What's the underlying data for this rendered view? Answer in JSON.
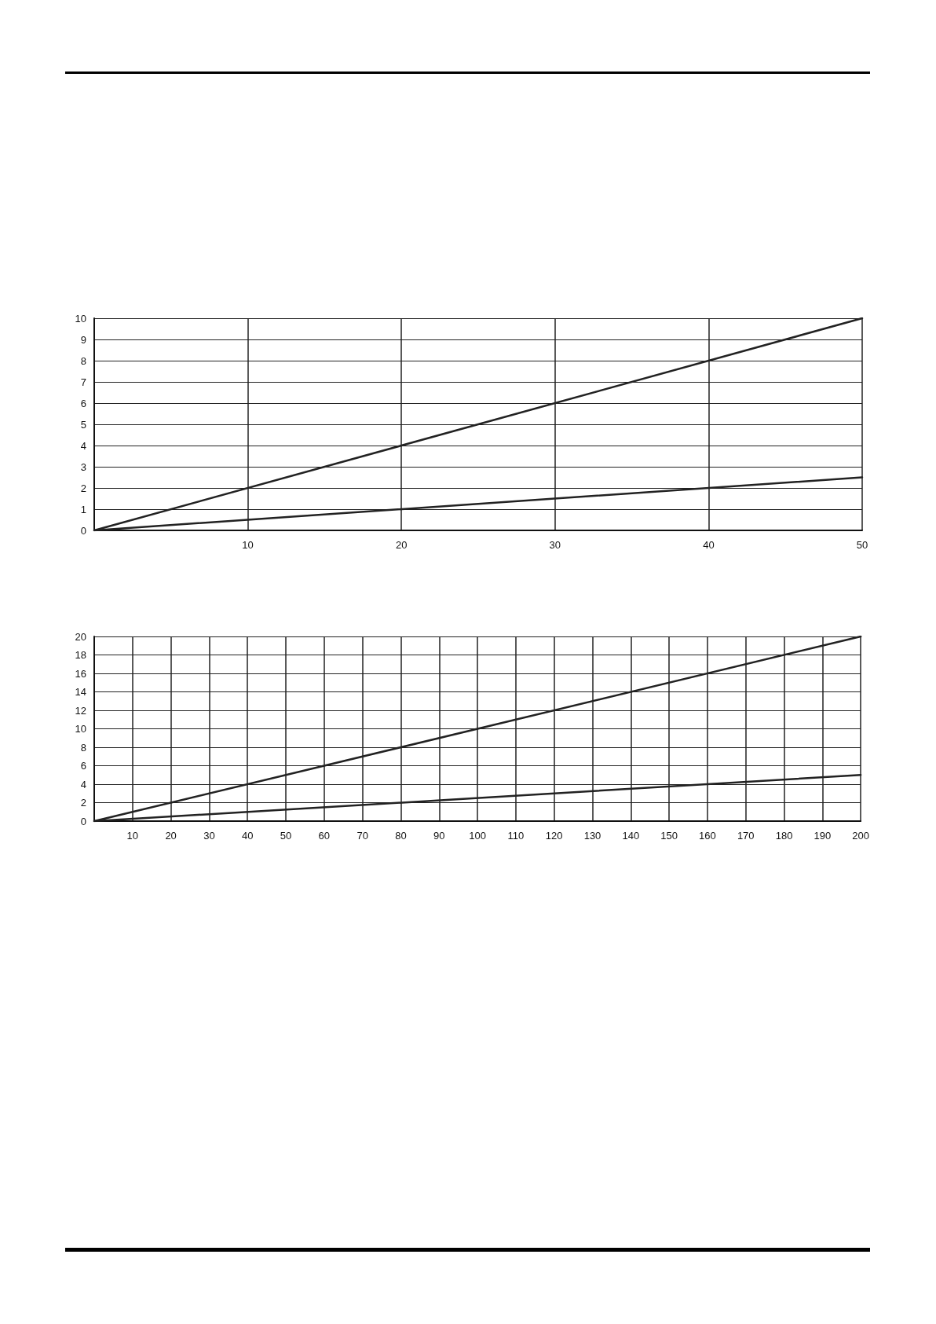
{
  "chart_data": [
    {
      "type": "line",
      "xlim": [
        0,
        50
      ],
      "ylim": [
        0,
        10
      ],
      "xticks": [
        10,
        20,
        30,
        40,
        50
      ],
      "yticks": [
        0,
        1,
        2,
        3,
        4,
        5,
        6,
        7,
        8,
        9,
        10
      ],
      "grid": true,
      "marker": "none",
      "line_style": "solid",
      "series": [
        {
          "color": "#222222",
          "x": [
            0,
            50
          ],
          "values": [
            0,
            10
          ]
        },
        {
          "color": "#222222",
          "x": [
            0,
            50
          ],
          "values": [
            0,
            2.5
          ]
        }
      ]
    },
    {
      "type": "line",
      "xlim": [
        0,
        200
      ],
      "ylim": [
        0,
        20
      ],
      "xticks": [
        10,
        20,
        30,
        40,
        50,
        60,
        70,
        80,
        90,
        100,
        110,
        120,
        130,
        140,
        150,
        160,
        170,
        180,
        190,
        200
      ],
      "yticks": [
        0,
        2,
        4,
        6,
        8,
        10,
        12,
        14,
        16,
        18,
        20
      ],
      "grid": true,
      "marker": "none",
      "line_style": "solid",
      "series": [
        {
          "color": "#222222",
          "x": [
            0,
            200
          ],
          "values": [
            0,
            20
          ]
        },
        {
          "color": "#222222",
          "x": [
            0,
            200
          ],
          "values": [
            0,
            5
          ]
        }
      ]
    }
  ]
}
